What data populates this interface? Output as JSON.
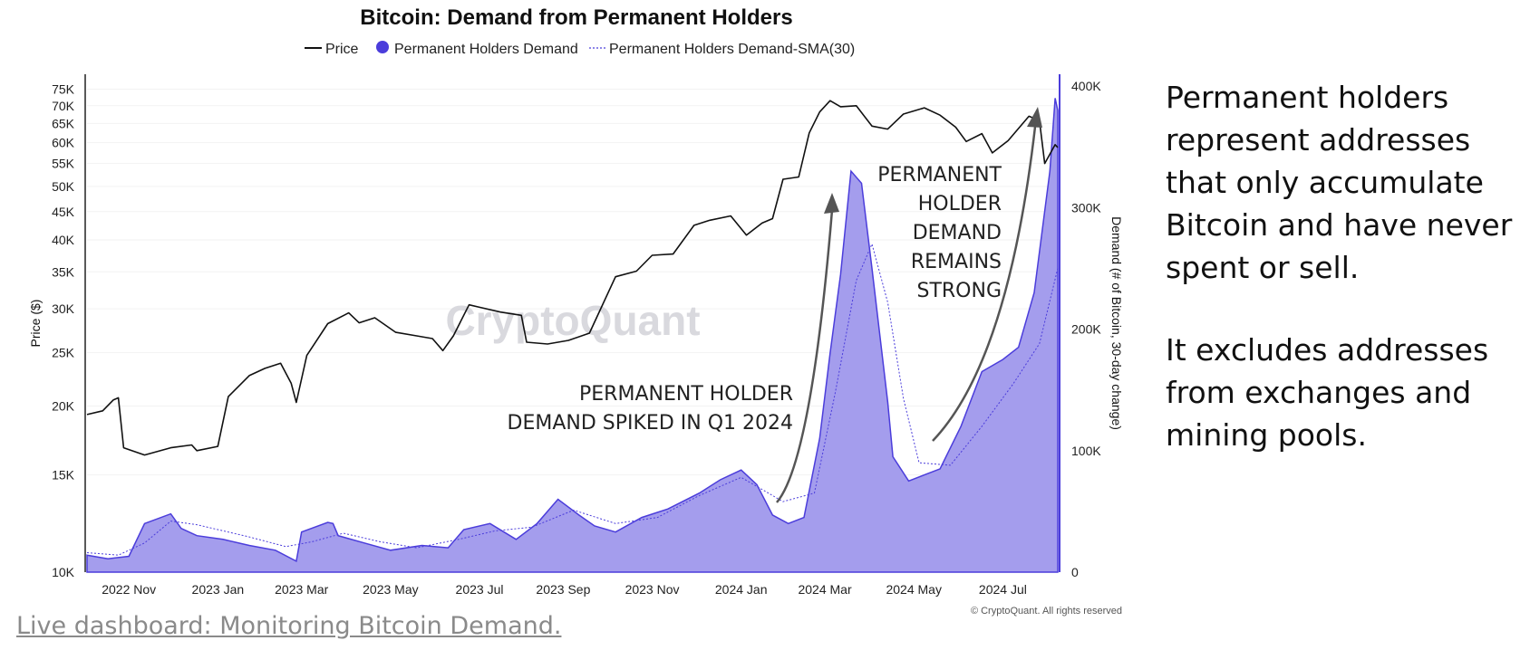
{
  "chart_data": {
    "type": "line",
    "title": "Bitcoin: Demand from Permanent Holders",
    "legend": [
      {
        "name": "Price",
        "style": "line",
        "color": "#111111"
      },
      {
        "name": "Permanent Holders Demand",
        "style": "area",
        "color": "#4b3ddb"
      },
      {
        "name": "Permanent Holders Demand-SMA(30)",
        "style": "dotted",
        "color": "#4b3ddb"
      }
    ],
    "left_axis": {
      "label": "Price ($)",
      "scale": "log",
      "range": [
        10000,
        76000
      ],
      "ticks": [
        {
          "v": 75000,
          "label": "75K"
        },
        {
          "v": 70000,
          "label": "70K"
        },
        {
          "v": 65000,
          "label": "65K"
        },
        {
          "v": 60000,
          "label": "60K"
        },
        {
          "v": 55000,
          "label": "55K"
        },
        {
          "v": 50000,
          "label": "50K"
        },
        {
          "v": 45000,
          "label": "45K"
        },
        {
          "v": 40000,
          "label": "40K"
        },
        {
          "v": 35000,
          "label": "35K"
        },
        {
          "v": 30000,
          "label": "30K"
        },
        {
          "v": 25000,
          "label": "25K"
        },
        {
          "v": 20000,
          "label": "20K"
        },
        {
          "v": 15000,
          "label": "15K"
        },
        {
          "v": 10000,
          "label": "10K"
        }
      ]
    },
    "right_axis": {
      "label": "Demand (# of Bitcoin, 30-day change)",
      "scale": "linear",
      "range": [
        0,
        400000
      ],
      "ticks": [
        {
          "v": 400000,
          "label": "400K"
        },
        {
          "v": 300000,
          "label": "300K"
        },
        {
          "v": 200000,
          "label": "200K"
        },
        {
          "v": 100000,
          "label": "100K"
        },
        {
          "v": 0,
          "label": "0"
        }
      ]
    },
    "x_axis": {
      "range": [
        2022.79,
        2024.645
      ],
      "ticks": [
        {
          "t": 2022.87,
          "label": "2022 Nov"
        },
        {
          "t": 2023.04,
          "label": "2023 Jan"
        },
        {
          "t": 2023.2,
          "label": "2023 Mar"
        },
        {
          "t": 2023.37,
          "label": "2023 May"
        },
        {
          "t": 2023.54,
          "label": "2023 Jul"
        },
        {
          "t": 2023.7,
          "label": "2023 Sep"
        },
        {
          "t": 2023.87,
          "label": "2023 Nov"
        },
        {
          "t": 2024.04,
          "label": "2024 Jan"
        },
        {
          "t": 2024.2,
          "label": "2024 Mar"
        },
        {
          "t": 2024.37,
          "label": "2024 May"
        },
        {
          "t": 2024.54,
          "label": "2024 Jul"
        }
      ]
    },
    "price": [
      [
        2022.79,
        19300
      ],
      [
        2022.82,
        19600
      ],
      [
        2022.84,
        20500
      ],
      [
        2022.85,
        20700
      ],
      [
        2022.86,
        16800
      ],
      [
        2022.9,
        16300
      ],
      [
        2022.95,
        16800
      ],
      [
        2022.99,
        17000
      ],
      [
        2023.0,
        16600
      ],
      [
        2023.04,
        16900
      ],
      [
        2023.06,
        20800
      ],
      [
        2023.1,
        22700
      ],
      [
        2023.13,
        23400
      ],
      [
        2023.16,
        23900
      ],
      [
        2023.18,
        22000
      ],
      [
        2023.19,
        20300
      ],
      [
        2023.21,
        24700
      ],
      [
        2023.25,
        28200
      ],
      [
        2023.29,
        29500
      ],
      [
        2023.31,
        28300
      ],
      [
        2023.34,
        28900
      ],
      [
        2023.38,
        27200
      ],
      [
        2023.42,
        26800
      ],
      [
        2023.45,
        26500
      ],
      [
        2023.47,
        25200
      ],
      [
        2023.49,
        26800
      ],
      [
        2023.52,
        30500
      ],
      [
        2023.54,
        30200
      ],
      [
        2023.58,
        29600
      ],
      [
        2023.62,
        29200
      ],
      [
        2023.63,
        26100
      ],
      [
        2023.67,
        25900
      ],
      [
        2023.71,
        26300
      ],
      [
        2023.75,
        27100
      ],
      [
        2023.8,
        34300
      ],
      [
        2023.84,
        35100
      ],
      [
        2023.87,
        37500
      ],
      [
        2023.91,
        37700
      ],
      [
        2023.95,
        42500
      ],
      [
        2023.98,
        43400
      ],
      [
        2024.02,
        44200
      ],
      [
        2024.05,
        40800
      ],
      [
        2024.08,
        42900
      ],
      [
        2024.1,
        43700
      ],
      [
        2024.12,
        51500
      ],
      [
        2024.15,
        52000
      ],
      [
        2024.17,
        62500
      ],
      [
        2024.19,
        68200
      ],
      [
        2024.21,
        71500
      ],
      [
        2024.23,
        69700
      ],
      [
        2024.26,
        70000
      ],
      [
        2024.29,
        64300
      ],
      [
        2024.32,
        63500
      ],
      [
        2024.35,
        67600
      ],
      [
        2024.39,
        69400
      ],
      [
        2024.42,
        67300
      ],
      [
        2024.45,
        64000
      ],
      [
        2024.47,
        60300
      ],
      [
        2024.5,
        62300
      ],
      [
        2024.52,
        57500
      ],
      [
        2024.55,
        60500
      ],
      [
        2024.59,
        67000
      ],
      [
        2024.61,
        65800
      ],
      [
        2024.62,
        55000
      ],
      [
        2024.64,
        59500
      ],
      [
        2024.645,
        58800
      ]
    ],
    "demand": [
      [
        2022.79,
        14000
      ],
      [
        2022.83,
        11000
      ],
      [
        2022.87,
        13000
      ],
      [
        2022.9,
        40000
      ],
      [
        2022.95,
        48000
      ],
      [
        2022.97,
        36000
      ],
      [
        2023.0,
        30000
      ],
      [
        2023.05,
        27000
      ],
      [
        2023.1,
        22000
      ],
      [
        2023.15,
        18000
      ],
      [
        2023.19,
        9000
      ],
      [
        2023.2,
        33000
      ],
      [
        2023.25,
        41000
      ],
      [
        2023.26,
        40000
      ],
      [
        2023.27,
        30000
      ],
      [
        2023.32,
        24000
      ],
      [
        2023.37,
        18000
      ],
      [
        2023.43,
        22000
      ],
      [
        2023.48,
        20000
      ],
      [
        2023.51,
        35000
      ],
      [
        2023.56,
        40000
      ],
      [
        2023.61,
        27000
      ],
      [
        2023.65,
        40000
      ],
      [
        2023.69,
        60000
      ],
      [
        2023.73,
        47000
      ],
      [
        2023.76,
        38000
      ],
      [
        2023.8,
        33000
      ],
      [
        2023.85,
        45000
      ],
      [
        2023.9,
        52000
      ],
      [
        2023.96,
        65000
      ],
      [
        2024.0,
        76000
      ],
      [
        2024.04,
        84000
      ],
      [
        2024.07,
        72000
      ],
      [
        2024.1,
        47000
      ],
      [
        2024.13,
        40000
      ],
      [
        2024.16,
        45000
      ],
      [
        2024.19,
        110000
      ],
      [
        2024.21,
        180000
      ],
      [
        2024.23,
        245000
      ],
      [
        2024.25,
        330000
      ],
      [
        2024.27,
        320000
      ],
      [
        2024.29,
        250000
      ],
      [
        2024.32,
        140000
      ],
      [
        2024.33,
        95000
      ],
      [
        2024.36,
        75000
      ],
      [
        2024.39,
        80000
      ],
      [
        2024.42,
        85000
      ],
      [
        2024.46,
        120000
      ],
      [
        2024.5,
        165000
      ],
      [
        2024.54,
        175000
      ],
      [
        2024.57,
        185000
      ],
      [
        2024.6,
        230000
      ],
      [
        2024.63,
        330000
      ],
      [
        2024.64,
        390000
      ],
      [
        2024.645,
        380000
      ]
    ],
    "sma": [
      [
        2022.79,
        16000
      ],
      [
        2022.85,
        14000
      ],
      [
        2022.9,
        24000
      ],
      [
        2022.95,
        42000
      ],
      [
        2023.0,
        39000
      ],
      [
        2023.1,
        29000
      ],
      [
        2023.17,
        21000
      ],
      [
        2023.22,
        25000
      ],
      [
        2023.28,
        32000
      ],
      [
        2023.35,
        25000
      ],
      [
        2023.42,
        20000
      ],
      [
        2023.5,
        27000
      ],
      [
        2023.57,
        34000
      ],
      [
        2023.64,
        37000
      ],
      [
        2023.72,
        51000
      ],
      [
        2023.8,
        40000
      ],
      [
        2023.88,
        45000
      ],
      [
        2023.96,
        63000
      ],
      [
        2024.04,
        78000
      ],
      [
        2024.12,
        58000
      ],
      [
        2024.18,
        65000
      ],
      [
        2024.22,
        148000
      ],
      [
        2024.26,
        240000
      ],
      [
        2024.29,
        270000
      ],
      [
        2024.32,
        222000
      ],
      [
        2024.35,
        143000
      ],
      [
        2024.38,
        90000
      ],
      [
        2024.44,
        88000
      ],
      [
        2024.5,
        120000
      ],
      [
        2024.56,
        155000
      ],
      [
        2024.61,
        188000
      ],
      [
        2024.645,
        250000
      ]
    ]
  },
  "annotations": {
    "q1_spike": [
      "PERMANENT HOLDER",
      "DEMAND SPIKED IN Q1 2024"
    ],
    "remains_strong": [
      "PERMANENT",
      "HOLDER",
      "DEMAND",
      "REMAINS",
      "STRONG"
    ]
  },
  "watermark": "CryptoQuant",
  "copyright": "© CryptoQuant. All rights reserved",
  "side_text": {
    "paragraph1": "Permanent holders represent addresses that only accumulate Bitcoin and have never spent or sell.",
    "paragraph2": "It excludes addresses from exchanges and mining pools."
  },
  "link": {
    "label": "Live dashboard: Monitoring Bitcoin Demand."
  },
  "colors": {
    "demand_fill": "#a49ded",
    "demand_line": "#4b3ddb",
    "price_line": "#111111",
    "arrow": "#555555"
  }
}
